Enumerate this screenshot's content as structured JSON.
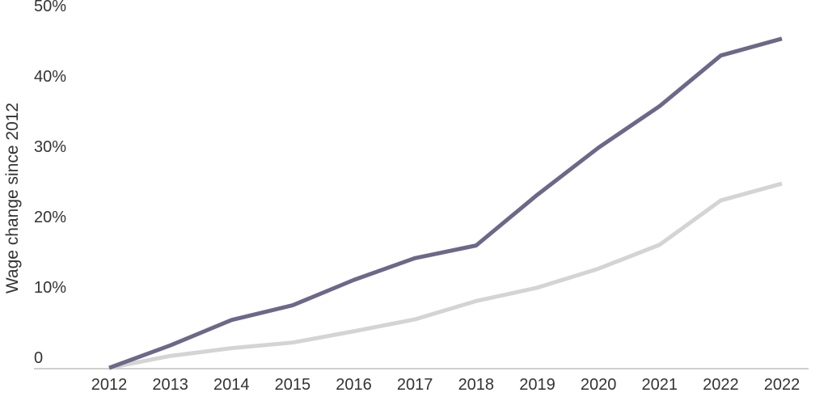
{
  "chart_data": {
    "type": "line",
    "title": "",
    "xlabel": "",
    "ylabel": "Wage change since 2012",
    "categories": [
      "2012",
      "2013",
      "2014",
      "2015",
      "2016",
      "2017",
      "2018",
      "2019",
      "2020",
      "2021",
      "2022",
      "2022"
    ],
    "ytick_labels": [
      "0",
      "10%",
      "20%",
      "30%",
      "40%",
      "50%"
    ],
    "yticks": [
      0,
      10,
      20,
      30,
      40,
      50
    ],
    "ylim": [
      0,
      50
    ],
    "grid": false,
    "legend": "none",
    "series": [
      {
        "color": "#6e6787",
        "values": [
          0,
          3.2,
          6.8,
          8.9,
          12.5,
          15.6,
          17.4,
          24.6,
          31.3,
          37.2,
          44.4,
          46.8
        ]
      },
      {
        "color": "#d4d4d4",
        "values": [
          0,
          1.7,
          2.8,
          3.6,
          5.2,
          6.9,
          9.5,
          11.4,
          14.1,
          17.5,
          23.8,
          26.2
        ]
      }
    ]
  }
}
